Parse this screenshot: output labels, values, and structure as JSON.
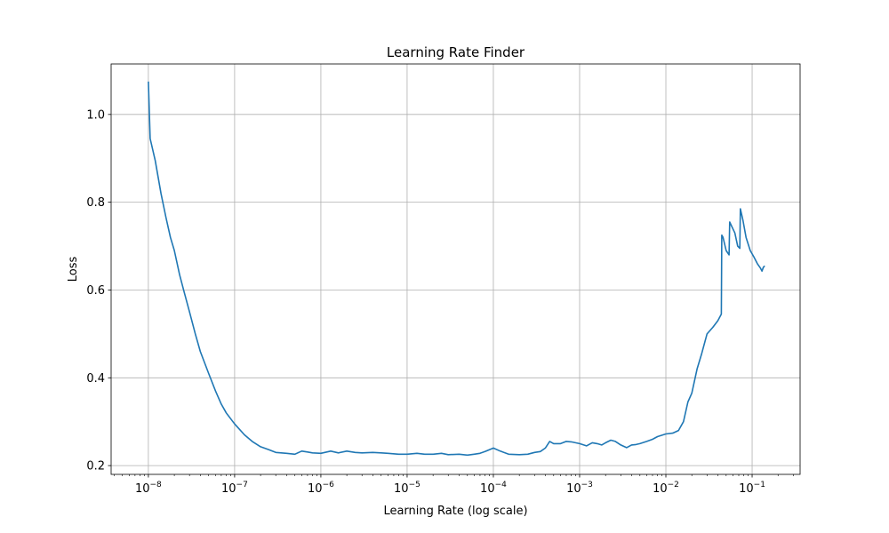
{
  "chart_data": {
    "type": "line",
    "title": "Learning Rate Finder",
    "xlabel": "Learning Rate (log scale)",
    "ylabel": "Loss",
    "x_scale": "log",
    "xlim": [
      3.7e-09,
      0.36
    ],
    "ylim": [
      0.18,
      1.115
    ],
    "grid": true,
    "x_tick_labels": [
      {
        "value": 1e-08,
        "base": "10",
        "exp": "−8"
      },
      {
        "value": 1e-07,
        "base": "10",
        "exp": "−7"
      },
      {
        "value": 1e-06,
        "base": "10",
        "exp": "−6"
      },
      {
        "value": 1e-05,
        "base": "10",
        "exp": "−5"
      },
      {
        "value": 0.0001,
        "base": "10",
        "exp": "−4"
      },
      {
        "value": 0.001,
        "base": "10",
        "exp": "−3"
      },
      {
        "value": 0.01,
        "base": "10",
        "exp": "−2"
      },
      {
        "value": 0.1,
        "base": "10",
        "exp": "−1"
      }
    ],
    "y_ticks": [
      {
        "value": 0.2,
        "label": "0.2"
      },
      {
        "value": 0.4,
        "label": "0.4"
      },
      {
        "value": 0.6,
        "label": "0.6"
      },
      {
        "value": 0.8,
        "label": "0.8"
      },
      {
        "value": 1.0,
        "label": "1.0"
      }
    ],
    "series": [
      {
        "color": "#1f77b4",
        "x": [
          1e-08,
          1.05e-08,
          1.2e-08,
          1.4e-08,
          1.6e-08,
          1.8e-08,
          2e-08,
          2.3e-08,
          2.6e-08,
          3e-08,
          3.5e-08,
          4e-08,
          5e-08,
          6e-08,
          7e-08,
          8e-08,
          1e-07,
          1.3e-07,
          1.6e-07,
          2e-07,
          2.5e-07,
          3e-07,
          4e-07,
          5e-07,
          6e-07,
          7e-07,
          8e-07,
          1e-06,
          1.3e-06,
          1.6e-06,
          2e-06,
          2.5e-06,
          3e-06,
          4e-06,
          5e-06,
          6e-06,
          8e-06,
          1e-05,
          1.3e-05,
          1.6e-05,
          2e-05,
          2.5e-05,
          3e-05,
          4e-05,
          5e-05,
          6e-05,
          7e-05,
          8e-05,
          0.0001,
          0.00012,
          0.00015,
          0.0002,
          0.00025,
          0.0003,
          0.00035,
          0.0004,
          0.00045,
          0.0005,
          0.0006,
          0.0007,
          0.0008,
          0.001,
          0.0012,
          0.0014,
          0.0016,
          0.0018,
          0.002,
          0.0023,
          0.0026,
          0.003,
          0.0035,
          0.004,
          0.0045,
          0.005,
          0.006,
          0.007,
          0.008,
          0.01,
          0.012,
          0.014,
          0.016,
          0.018,
          0.02,
          0.023,
          0.026,
          0.03,
          0.035,
          0.04,
          0.044,
          0.0445,
          0.046,
          0.05,
          0.054,
          0.055,
          0.058,
          0.063,
          0.068,
          0.072,
          0.073,
          0.078,
          0.085,
          0.095,
          0.105,
          0.115,
          0.125,
          0.13,
          0.135,
          0.14
        ],
        "y": [
          1.075,
          0.945,
          0.895,
          0.82,
          0.765,
          0.72,
          0.69,
          0.635,
          0.595,
          0.55,
          0.5,
          0.46,
          0.41,
          0.37,
          0.34,
          0.32,
          0.295,
          0.27,
          0.255,
          0.243,
          0.236,
          0.23,
          0.228,
          0.226,
          0.233,
          0.231,
          0.229,
          0.228,
          0.233,
          0.229,
          0.233,
          0.23,
          0.229,
          0.23,
          0.229,
          0.228,
          0.226,
          0.226,
          0.228,
          0.226,
          0.226,
          0.228,
          0.225,
          0.226,
          0.224,
          0.226,
          0.228,
          0.232,
          0.24,
          0.233,
          0.226,
          0.225,
          0.226,
          0.23,
          0.232,
          0.24,
          0.255,
          0.25,
          0.25,
          0.255,
          0.254,
          0.25,
          0.245,
          0.252,
          0.25,
          0.247,
          0.252,
          0.258,
          0.255,
          0.247,
          0.241,
          0.247,
          0.248,
          0.25,
          0.255,
          0.26,
          0.266,
          0.272,
          0.274,
          0.28,
          0.3,
          0.345,
          0.365,
          0.42,
          0.455,
          0.5,
          0.515,
          0.53,
          0.545,
          0.725,
          0.72,
          0.69,
          0.68,
          0.755,
          0.745,
          0.73,
          0.7,
          0.695,
          0.785,
          0.76,
          0.72,
          0.69,
          0.675,
          0.66,
          0.65,
          0.643,
          0.652,
          0.655
        ]
      }
    ]
  }
}
